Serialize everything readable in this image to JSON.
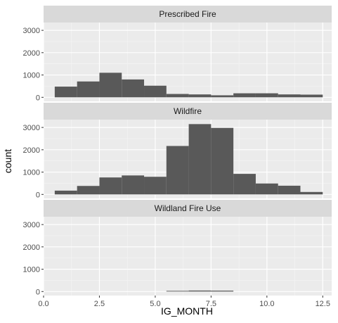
{
  "chart_data": {
    "type": "bar",
    "xlabel": "IG_MONTH",
    "ylabel": "count",
    "xlim": [
      0,
      12.9
    ],
    "ylim": [
      -180,
      3350
    ],
    "x_ticks": [
      "0.0",
      "2.5",
      "5.0",
      "7.5",
      "10.0",
      "12.5"
    ],
    "x_tick_values": [
      0,
      2.5,
      5,
      7.5,
      10,
      12.5
    ],
    "y_ticks": [
      "0",
      "1000",
      "2000",
      "3000"
    ],
    "y_tick_values": [
      0,
      1000,
      2000,
      3000
    ],
    "bin_width": 1,
    "bin_centers": [
      1,
      2,
      3,
      4,
      5,
      6,
      7,
      8,
      9,
      10,
      11,
      12
    ],
    "grid": true,
    "bar_color": "#595959",
    "panel_background": "#ebebeb",
    "strip_background": "#d9d9d9",
    "panels": [
      {
        "label": "Prescribed Fire",
        "values": [
          480,
          710,
          1100,
          800,
          520,
          150,
          130,
          90,
          180,
          180,
          130,
          120
        ]
      },
      {
        "label": "Wildfire",
        "values": [
          170,
          380,
          760,
          850,
          790,
          2170,
          3150,
          2980,
          920,
          490,
          390,
          110
        ]
      },
      {
        "label": "Wildland Fire Use",
        "values": [
          0,
          0,
          0,
          0,
          0,
          30,
          45,
          40,
          0,
          0,
          0,
          0
        ]
      }
    ]
  }
}
